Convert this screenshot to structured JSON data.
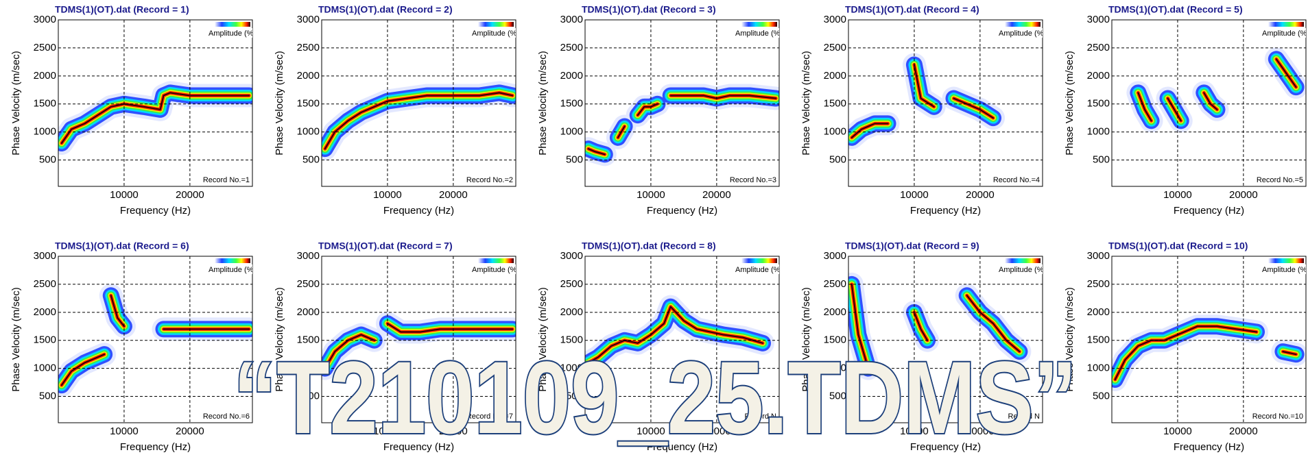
{
  "chart_data": [
    {
      "type": "line",
      "title": "TDMS(1)(OT).dat (Record = 1)",
      "xlabel": "Frequency (Hz)",
      "ylabel": "Phase Velocity (m/sec)",
      "legend_title": "Amplitude (%",
      "annotation": "Record No.=1",
      "xlim": [
        0,
        29500
      ],
      "ylim": [
        30,
        3000
      ],
      "xticks": [
        10000,
        20000
      ],
      "yticks": [
        500,
        1000,
        1500,
        2000,
        2500,
        3000
      ],
      "grid": true,
      "x": [
        500,
        2000,
        4000,
        6000,
        8000,
        10000,
        13000,
        15500,
        16000,
        17000,
        20000,
        24000,
        29000
      ],
      "values": [
        800,
        1050,
        1150,
        1300,
        1450,
        1500,
        1450,
        1400,
        1650,
        1700,
        1650,
        1650,
        1650
      ]
    },
    {
      "type": "line",
      "title": "TDMS(1)(OT).dat (Record = 2)",
      "xlabel": "Frequency (Hz)",
      "ylabel": "Phase Velocity (m/sec)",
      "legend_title": "Amplitude (%",
      "annotation": "Record No.=2",
      "xlim": [
        0,
        29500
      ],
      "ylim": [
        30,
        3000
      ],
      "xticks": [
        10000,
        20000
      ],
      "yticks": [
        500,
        1000,
        1500,
        2000,
        2500,
        3000
      ],
      "grid": true,
      "x": [
        500,
        2000,
        4000,
        6000,
        8000,
        10000,
        13000,
        16000,
        20000,
        24000,
        27000,
        29000
      ],
      "values": [
        700,
        1000,
        1200,
        1350,
        1450,
        1550,
        1600,
        1650,
        1650,
        1650,
        1700,
        1650
      ]
    },
    {
      "type": "line",
      "title": "TDMS(1)(OT).dat (Record = 3)",
      "xlabel": "Frequency (Hz)",
      "ylabel": "Phase Velocity (m/sec)",
      "legend_title": "Amplitude (%",
      "annotation": "Record No.=3",
      "xlim": [
        0,
        29500
      ],
      "ylim": [
        30,
        3000
      ],
      "xticks": [
        10000,
        20000
      ],
      "yticks": [
        500,
        1000,
        1500,
        2000,
        2500,
        3000
      ],
      "grid": true,
      "x": [
        500,
        1500,
        3000,
        4000,
        5000,
        6000,
        7000,
        8000,
        9000,
        10000,
        11000,
        12000,
        13000,
        15000,
        18000,
        20000,
        22000,
        25000,
        29000
      ],
      "values": [
        700,
        650,
        600,
        null,
        900,
        1100,
        null,
        1300,
        1450,
        1450,
        1500,
        null,
        1650,
        1650,
        1650,
        1600,
        1650,
        1650,
        1600
      ]
    },
    {
      "type": "line",
      "title": "TDMS(1)(OT).dat (Record = 4)",
      "xlabel": "Frequency (Hz)",
      "ylabel": "Phase Velocity (m/sec)",
      "legend_title": "Amplitude (%",
      "annotation": "Record No.=4",
      "xlim": [
        0,
        29500
      ],
      "ylim": [
        30,
        3000
      ],
      "xticks": [
        10000,
        20000
      ],
      "yticks": [
        500,
        1000,
        1500,
        2000,
        2500,
        3000
      ],
      "grid": true,
      "x": [
        500,
        2000,
        4000,
        6000,
        7000,
        9000,
        10000,
        11000,
        13000,
        14000,
        16000,
        18000,
        20000,
        22000
      ],
      "values": [
        900,
        1050,
        1150,
        1150,
        null,
        null,
        2200,
        1600,
        1450,
        null,
        1600,
        1500,
        1400,
        1250
      ]
    },
    {
      "type": "line",
      "title": "TDMS(1)(OT).dat (Record = 5)",
      "xlabel": "Frequency (Hz)",
      "ylabel": "Phase Velocity (m/sec)",
      "legend_title": "Amplitude (%",
      "annotation": "Record No.=5",
      "xlim": [
        0,
        29500
      ],
      "ylim": [
        30,
        3000
      ],
      "xticks": [
        10000,
        20000
      ],
      "yticks": [
        500,
        1000,
        1500,
        2000,
        2500,
        3000
      ],
      "grid": true,
      "x": [
        4000,
        5000,
        6000,
        7000,
        8500,
        9500,
        10500,
        13000,
        14000,
        15000,
        16000,
        20000,
        25000,
        28000
      ],
      "values": [
        1700,
        1400,
        1200,
        null,
        1600,
        1400,
        1200,
        null,
        1700,
        1500,
        1400,
        null,
        2300,
        1800
      ]
    },
    {
      "type": "line",
      "title": "TDMS(1)(OT).dat (Record = 6)",
      "xlabel": "Frequency (Hz)",
      "ylabel": "Phase Velocity (m/sec)",
      "legend_title": "Amplitude (%",
      "annotation": "Record No.=6",
      "xlim": [
        0,
        29500
      ],
      "ylim": [
        30,
        3000
      ],
      "xticks": [
        10000,
        20000
      ],
      "yticks": [
        500,
        1000,
        1500,
        2000,
        2500,
        3000
      ],
      "grid": true,
      "x": [
        500,
        2000,
        4000,
        6000,
        7000,
        7500,
        8000,
        9000,
        10000,
        12000,
        15000,
        16000,
        18000,
        22000,
        26000,
        29000
      ],
      "values": [
        700,
        950,
        1100,
        1200,
        1250,
        null,
        2300,
        1900,
        1750,
        null,
        null,
        1700,
        1700,
        1700,
        1700,
        1700
      ]
    },
    {
      "type": "line",
      "title": "TDMS(1)(OT).dat (Record = 7)",
      "xlabel": "Frequency (Hz)",
      "ylabel": "Phase Velocity (m/sec)",
      "legend_title": "Amplitude (%",
      "annotation": "Record No.=7",
      "xlim": [
        0,
        29500
      ],
      "ylim": [
        30,
        3000
      ],
      "xticks": [
        10000,
        20000
      ],
      "yticks": [
        500,
        1000,
        1500,
        2000,
        2500,
        3000
      ],
      "grid": true,
      "x": [
        500,
        2000,
        4000,
        6000,
        8000,
        9000,
        10000,
        12000,
        15000,
        18000,
        22000,
        26000,
        29000
      ],
      "values": [
        1000,
        1300,
        1500,
        1600,
        1500,
        null,
        1800,
        1650,
        1650,
        1700,
        1700,
        1700,
        1700
      ]
    },
    {
      "type": "line",
      "title": "TDMS(1)(OT).dat (Record = 8)",
      "xlabel": "Frequency (Hz)",
      "ylabel": "Phase Velocity (m/sec)",
      "legend_title": "Amplitude (%",
      "annotation": "Record N",
      "xlim": [
        0,
        29500
      ],
      "ylim": [
        30,
        3000
      ],
      "xticks": [
        10000,
        20000
      ],
      "yticks": [
        500,
        1000,
        1500,
        2000,
        2500,
        3000
      ],
      "grid": true,
      "x": [
        500,
        2000,
        4000,
        6000,
        8000,
        10000,
        12000,
        13000,
        15000,
        17000,
        19000,
        21000,
        24000,
        27000
      ],
      "values": [
        1100,
        1200,
        1400,
        1500,
        1450,
        1600,
        1800,
        2100,
        1850,
        1700,
        1650,
        1600,
        1550,
        1450
      ]
    },
    {
      "type": "line",
      "title": "TDMS(1)(OT).dat (Record = 9)",
      "xlabel": "Frequency (Hz)",
      "ylabel": "Phase Velocity (m/sec)",
      "legend_title": "Amplitude (%",
      "annotation": "Record N",
      "xlim": [
        0,
        29500
      ],
      "ylim": [
        30,
        3000
      ],
      "xticks": [
        10000,
        20000
      ],
      "yticks": [
        500,
        1000,
        1500,
        2000,
        2500,
        3000
      ],
      "grid": true,
      "x": [
        500,
        1500,
        3000,
        4000,
        9000,
        10000,
        11000,
        12000,
        15000,
        18000,
        20000,
        22000,
        24000,
        26000
      ],
      "values": [
        2500,
        1600,
        1000,
        null,
        null,
        2000,
        1700,
        1500,
        null,
        2300,
        2000,
        1800,
        1500,
        1300
      ]
    },
    {
      "type": "line",
      "title": "TDMS(1)(OT).dat (Record = 10)",
      "xlabel": "Frequency (Hz)",
      "ylabel": "Phase Velocity (m/sec)",
      "legend_title": "Amplitude (%",
      "annotation": "Record No.=10",
      "xlim": [
        0,
        29500
      ],
      "ylim": [
        30,
        3000
      ],
      "xticks": [
        10000,
        20000
      ],
      "yticks": [
        500,
        1000,
        1500,
        2000,
        2500,
        3000
      ],
      "grid": true,
      "x": [
        500,
        2000,
        4000,
        6000,
        8000,
        10000,
        13000,
        16000,
        19000,
        22000,
        24000,
        26000,
        28000
      ],
      "values": [
        800,
        1150,
        1400,
        1500,
        1500,
        1600,
        1750,
        1750,
        1700,
        1650,
        null,
        1300,
        1250
      ]
    }
  ],
  "overlay_text": "“T210109_25.TDMS”"
}
